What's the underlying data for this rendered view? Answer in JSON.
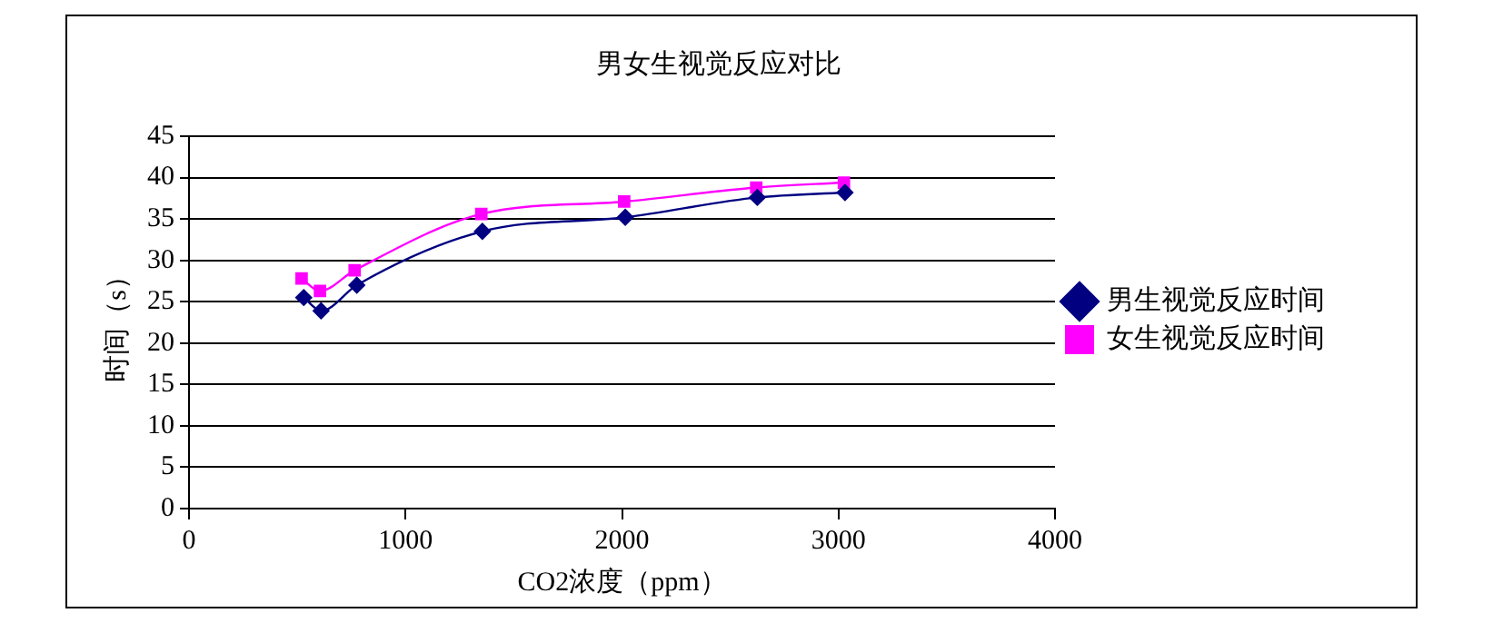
{
  "chart_data": {
    "type": "line",
    "title": "男女生视觉反应对比",
    "xlabel": "CO2浓度（ppm）",
    "ylabel": "时间（s）",
    "xlim": [
      0,
      4000
    ],
    "xticks": [
      0,
      1000,
      2000,
      3000,
      4000
    ],
    "ylim": [
      0,
      45
    ],
    "yticks": [
      0,
      5,
      10,
      15,
      20,
      25,
      30,
      35,
      40,
      45
    ],
    "grid": "y",
    "legend": "right",
    "series": [
      {
        "name": "男生视觉反应时间",
        "color": "#000080",
        "marker": "diamond",
        "x": [
          530,
          610,
          775,
          1355,
          2015,
          2625,
          3030
        ],
        "values": [
          25.5,
          23.9,
          27.0,
          33.5,
          35.2,
          37.6,
          38.2
        ]
      },
      {
        "name": "女生视觉反应时间",
        "color": "#ff00ff",
        "marker": "square",
        "x": [
          520,
          605,
          765,
          1350,
          2010,
          2620,
          3025
        ],
        "values": [
          27.8,
          26.3,
          28.8,
          35.6,
          37.1,
          38.8,
          39.4
        ]
      }
    ]
  }
}
